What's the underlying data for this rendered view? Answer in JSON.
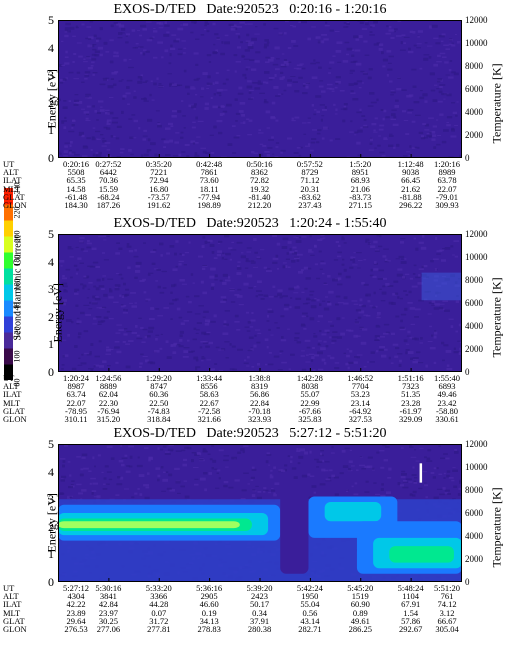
{
  "colorbar": {
    "label": "Second Harmonic Current",
    "ticks": [
      "80",
      "100",
      "120",
      "140",
      "160",
      "180",
      "200",
      "220",
      "240"
    ],
    "colors": [
      "#000000",
      "#3a0a4a",
      "#4a2a9a",
      "#3040d8",
      "#1a8aff",
      "#00c8e8",
      "#00e0a0",
      "#30ff30",
      "#d8ff20",
      "#ffd000",
      "#ff7000",
      "#ff2000"
    ]
  },
  "table_row_labels": [
    "UT",
    "ALT",
    "ILAT",
    "MLT",
    "GLAT",
    "GLON"
  ],
  "chart_data": [
    {
      "type": "heatmap",
      "title": "EXOS-D/TED   Date:920523   0:20:16 - 1:20:16",
      "ylabel": "Energy [eV]",
      "y2label": "Temperature [K]",
      "ylim": [
        0,
        5
      ],
      "y2lim": [
        0,
        12000
      ],
      "yticks": [
        "0",
        "1",
        "2",
        "3",
        "4",
        "5"
      ],
      "y2ticks": [
        "0",
        "2000",
        "4000",
        "6000",
        "8000",
        "10000",
        "12000"
      ],
      "grid": false,
      "intensity_level": "low_uniform",
      "columns": {
        "UT": [
          "0:20:16",
          "0:27:52",
          "0:35:20",
          "0:42:48",
          "0:50:16",
          "0:57:52",
          "1:5:20",
          "1:12:48",
          "1:20:16"
        ],
        "ALT": [
          "5508",
          "6442",
          "7221",
          "7861",
          "8362",
          "8729",
          "8951",
          "9038",
          "8989"
        ],
        "ILAT": [
          "65.35",
          "70.36",
          "72.94",
          "73.60",
          "72.82",
          "71.12",
          "68.93",
          "66.45",
          "63.78"
        ],
        "MLT": [
          "14.58",
          "15.59",
          "16.80",
          "18.11",
          "19.32",
          "20.31",
          "21.06",
          "21.62",
          "22.07"
        ],
        "GLAT": [
          "-61.48",
          "-68.24",
          "-73.57",
          "-77.94",
          "-81.40",
          "-83.62",
          "-83.73",
          "-81.88",
          "-79.01"
        ],
        "GLON": [
          "184.30",
          "187.26",
          "191.62",
          "198.89",
          "212.20",
          "237.43",
          "271.15",
          "296.22",
          "309.93"
        ]
      }
    },
    {
      "type": "heatmap",
      "title": "EXOS-D/TED   Date:920523   1:20:24 - 1:55:40",
      "ylabel": "Energy [eV]",
      "y2label": "Temperature [K]",
      "ylim": [
        0,
        5
      ],
      "y2lim": [
        0,
        12000
      ],
      "yticks": [
        "0",
        "1",
        "2",
        "3",
        "4",
        "5"
      ],
      "y2ticks": [
        "0",
        "2000",
        "4000",
        "6000",
        "8000",
        "10000",
        "12000"
      ],
      "grid": false,
      "intensity_level": "low_uniform",
      "columns": {
        "UT": [
          "1:20:24",
          "1:24:56",
          "1:29:20",
          "1:33:44",
          "1:38:8",
          "1:42:28",
          "1:46:52",
          "1:51:16",
          "1:55:40"
        ],
        "ALT": [
          "8987",
          "8889",
          "8747",
          "8556",
          "8319",
          "8038",
          "7704",
          "7323",
          "6893"
        ],
        "ILAT": [
          "63.74",
          "62.04",
          "60.36",
          "58.63",
          "56.86",
          "55.07",
          "53.23",
          "51.35",
          "49.46"
        ],
        "MLT": [
          "22.07",
          "22.30",
          "22.50",
          "22.67",
          "22.84",
          "22.99",
          "23.14",
          "23.28",
          "23.42"
        ],
        "GLAT": [
          "-78.95",
          "-76.94",
          "-74.83",
          "-72.58",
          "-70.18",
          "-67.66",
          "-64.92",
          "-61.97",
          "-58.80"
        ],
        "GLON": [
          "310.11",
          "315.20",
          "318.84",
          "321.66",
          "323.93",
          "325.83",
          "327.53",
          "329.09",
          "330.61"
        ]
      }
    },
    {
      "type": "heatmap",
      "title": "EXOS-D/TED   Date:920523   5:27:12 - 5:51:20",
      "ylabel": "Energy [eV]",
      "y2label": "Temperature [K]",
      "ylim": [
        0,
        5
      ],
      "y2lim": [
        0,
        12000
      ],
      "yticks": [
        "0",
        "1",
        "2",
        "3",
        "4",
        "5"
      ],
      "y2ticks": [
        "0",
        "2000",
        "4000",
        "6000",
        "8000",
        "10000",
        "12000"
      ],
      "grid": false,
      "intensity_level": "band_near_2eV",
      "columns": {
        "UT": [
          "5:27:12",
          "5:30:16",
          "5:33:20",
          "5:36:16",
          "5:39:20",
          "5:42:24",
          "5:45:20",
          "5:48:24",
          "5:51:20"
        ],
        "ALT": [
          "4304",
          "3841",
          "3366",
          "2905",
          "2423",
          "1950",
          "1519",
          "1104",
          "761"
        ],
        "ILAT": [
          "42.22",
          "42.84",
          "44.28",
          "46.60",
          "50.17",
          "55.04",
          "60.90",
          "67.91",
          "74.12"
        ],
        "MLT": [
          "23.89",
          "23.97",
          "0.07",
          "0.19",
          "0.34",
          "0.56",
          "0.89",
          "1.54",
          "3.12"
        ],
        "GLAT": [
          "29.64",
          "30.25",
          "31.72",
          "34.13",
          "37.91",
          "43.14",
          "49.61",
          "57.86",
          "66.67"
        ],
        "GLON": [
          "276.53",
          "277.06",
          "277.81",
          "278.83",
          "280.38",
          "282.71",
          "286.25",
          "292.67",
          "305.04"
        ]
      }
    }
  ]
}
